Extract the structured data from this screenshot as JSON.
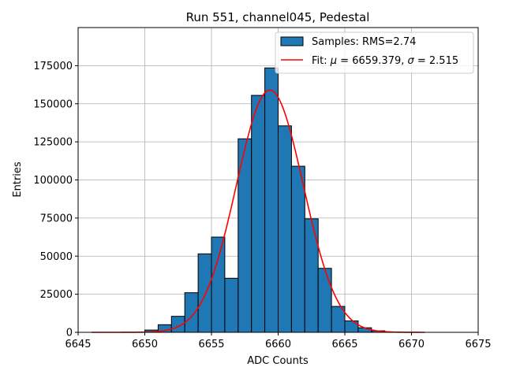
{
  "chart_data": {
    "type": "bar",
    "title": "Run 551, channel045, Pedestal",
    "xlabel": "ADC Counts",
    "ylabel": "Entries",
    "xlim": [
      6645,
      6675
    ],
    "ylim": [
      0,
      200000
    ],
    "xticks": [
      6645,
      6650,
      6655,
      6660,
      6665,
      6670,
      6675
    ],
    "xtick_labels": [
      "6645",
      "6650",
      "6655",
      "6660",
      "6665",
      "6670",
      "6675"
    ],
    "yticks": [
      0,
      25000,
      50000,
      75000,
      100000,
      125000,
      150000,
      175000
    ],
    "ytick_labels": [
      "0",
      "25000",
      "50000",
      "75000",
      "100000",
      "125000",
      "150000",
      "175000"
    ],
    "grid": true,
    "bin_width": 1,
    "bins": [
      {
        "x": 6650,
        "value": 1500
      },
      {
        "x": 6651,
        "value": 5000
      },
      {
        "x": 6652,
        "value": 10500
      },
      {
        "x": 6653,
        "value": 26000
      },
      {
        "x": 6654,
        "value": 51500
      },
      {
        "x": 6655,
        "value": 62500
      },
      {
        "x": 6656,
        "value": 35500
      },
      {
        "x": 6657,
        "value": 127000
      },
      {
        "x": 6658,
        "value": 155500
      },
      {
        "x": 6659,
        "value": 173500
      },
      {
        "x": 6660,
        "value": 135500
      },
      {
        "x": 6661,
        "value": 109000
      },
      {
        "x": 6662,
        "value": 74500
      },
      {
        "x": 6663,
        "value": 42000
      },
      {
        "x": 6664,
        "value": 17000
      },
      {
        "x": 6665,
        "value": 7500
      },
      {
        "x": 6666,
        "value": 3000
      },
      {
        "x": 6667,
        "value": 1000
      }
    ],
    "fit": {
      "mu": 6659.379,
      "sigma": 2.515,
      "amplitude": 159000,
      "x_range": [
        6646,
        6671
      ],
      "color": "#ff0000"
    },
    "bar_color": "#1f77b4",
    "legend_position": "top-right",
    "legend": {
      "samples": "Samples: RMS=2.74",
      "fit_prefix": "Fit: ",
      "mu_symbol": "μ",
      "mu_text": " = 6659.379, ",
      "sigma_symbol": "σ",
      "sigma_text": " = 2.515"
    }
  }
}
